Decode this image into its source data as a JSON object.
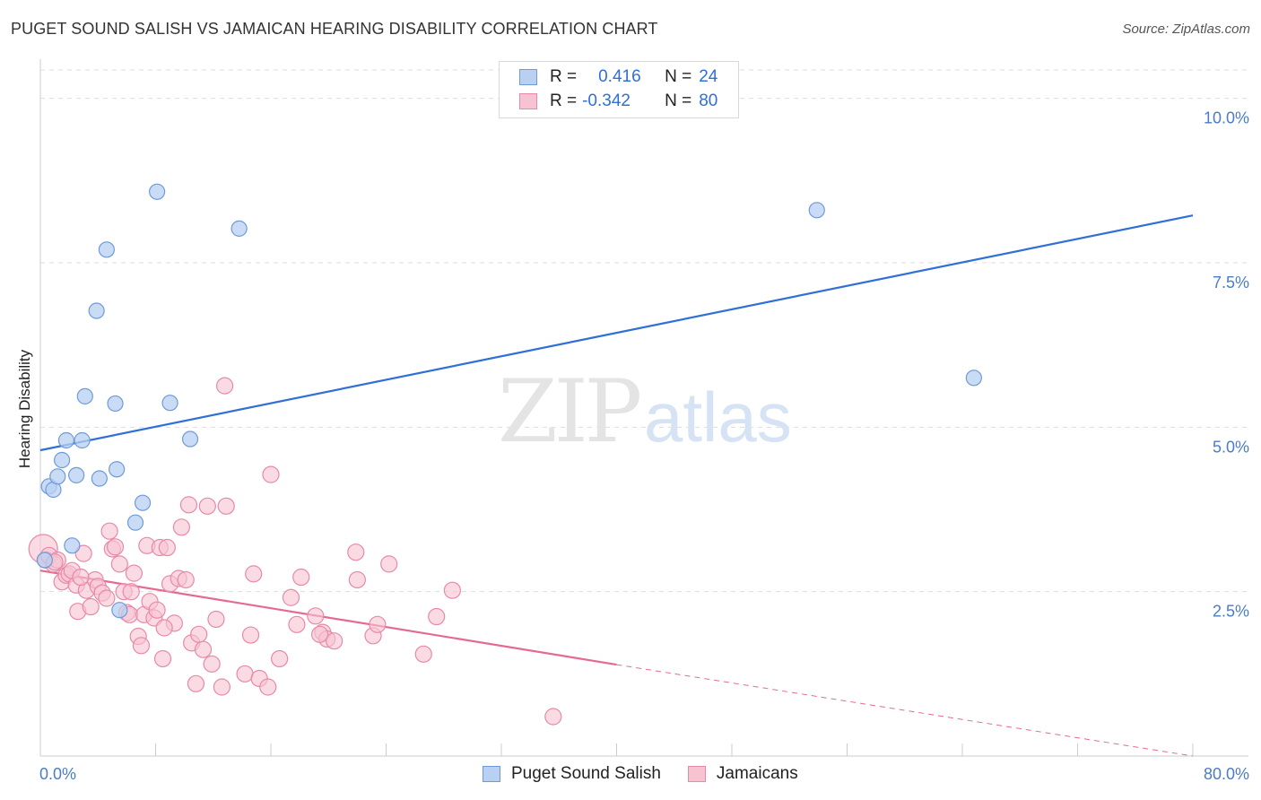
{
  "title": "PUGET SOUND SALISH VS JAMAICAN HEARING DISABILITY CORRELATION CHART",
  "source": "Source: ZipAtlas.com",
  "watermark": {
    "zip": "ZIP",
    "atlas": "atlas"
  },
  "legend": {
    "rows": [
      {
        "r_label": "R =",
        "r_value": "0.416",
        "n_label": "N =",
        "n_value": "24"
      },
      {
        "r_label": "R =",
        "r_value": "-0.342",
        "n_label": "N =",
        "n_value": "80"
      }
    ]
  },
  "colors": {
    "blue_fill": "#b8d0f2",
    "blue_stroke": "#6f9ad8",
    "blue_line": "#2f6fd6",
    "pink_fill": "#f7c3d2",
    "pink_stroke": "#e889a8",
    "pink_line": "#e56a92",
    "grid": "#dddddd",
    "tick_text": "#4a7cc9"
  },
  "chart_data": {
    "type": "scatter",
    "title": "PUGET SOUND SALISH VS JAMAICAN HEARING DISABILITY CORRELATION CHART",
    "xlabel": "",
    "ylabel": "Hearing Disability",
    "xlim": [
      0,
      80
    ],
    "ylim": [
      0,
      10.5
    ],
    "x_tick_labels": [
      "0.0%",
      "80.0%"
    ],
    "y_ticks": [
      {
        "value": 2.5,
        "label": "2.5%"
      },
      {
        "value": 5.0,
        "label": "5.0%"
      },
      {
        "value": 7.5,
        "label": "7.5%"
      },
      {
        "value": 10.0,
        "label": "10.0%"
      }
    ],
    "legend_placement": "top-center",
    "grid": true,
    "series": [
      {
        "name": "Puget Sound Salish",
        "r": 0.416,
        "n": 24,
        "points": [
          [
            0.6,
            4.1
          ],
          [
            0.9,
            4.05
          ],
          [
            1.2,
            4.25
          ],
          [
            1.5,
            4.5
          ],
          [
            1.8,
            4.8
          ],
          [
            2.2,
            3.2
          ],
          [
            2.5,
            4.27
          ],
          [
            2.9,
            4.8
          ],
          [
            3.1,
            5.47
          ],
          [
            3.9,
            6.77
          ],
          [
            4.1,
            4.22
          ],
          [
            4.6,
            7.7
          ],
          [
            5.2,
            5.36
          ],
          [
            5.3,
            4.36
          ],
          [
            5.5,
            2.22
          ],
          [
            6.6,
            3.55
          ],
          [
            7.1,
            3.85
          ],
          [
            8.1,
            8.58
          ],
          [
            9.0,
            5.37
          ],
          [
            10.4,
            4.82
          ],
          [
            13.8,
            8.02
          ],
          [
            53.9,
            8.3
          ],
          [
            64.8,
            5.75
          ],
          [
            0.3,
            2.98
          ]
        ],
        "trend": {
          "x": [
            0,
            80
          ],
          "y": [
            4.65,
            8.22
          ]
        }
      },
      {
        "name": "Jamaicans",
        "r": -0.342,
        "n": 80,
        "points": [
          [
            0.2,
            3.15
          ],
          [
            0.4,
            2.98
          ],
          [
            0.6,
            3.05
          ],
          [
            0.9,
            2.92
          ],
          [
            1.2,
            2.98
          ],
          [
            1.5,
            2.65
          ],
          [
            1.8,
            2.75
          ],
          [
            2.0,
            2.77
          ],
          [
            2.2,
            2.82
          ],
          [
            2.5,
            2.6
          ],
          [
            2.6,
            2.2
          ],
          [
            3.0,
            3.08
          ],
          [
            3.2,
            2.52
          ],
          [
            3.5,
            2.27
          ],
          [
            3.8,
            2.68
          ],
          [
            4.0,
            2.58
          ],
          [
            4.3,
            2.48
          ],
          [
            4.6,
            2.4
          ],
          [
            4.8,
            3.42
          ],
          [
            5.0,
            3.15
          ],
          [
            5.2,
            3.18
          ],
          [
            5.5,
            2.92
          ],
          [
            5.8,
            2.5
          ],
          [
            6.0,
            2.18
          ],
          [
            6.2,
            2.15
          ],
          [
            6.3,
            2.5
          ],
          [
            6.5,
            2.78
          ],
          [
            6.8,
            1.82
          ],
          [
            7.0,
            1.68
          ],
          [
            7.2,
            2.15
          ],
          [
            7.4,
            3.2
          ],
          [
            7.6,
            2.35
          ],
          [
            7.9,
            2.1
          ],
          [
            8.1,
            2.22
          ],
          [
            8.3,
            3.17
          ],
          [
            8.5,
            1.48
          ],
          [
            8.8,
            3.17
          ],
          [
            9.0,
            2.62
          ],
          [
            9.3,
            2.02
          ],
          [
            9.6,
            2.7
          ],
          [
            9.8,
            3.48
          ],
          [
            10.1,
            2.68
          ],
          [
            10.3,
            3.82
          ],
          [
            10.5,
            1.72
          ],
          [
            10.8,
            1.1
          ],
          [
            11.0,
            1.85
          ],
          [
            11.3,
            1.62
          ],
          [
            11.6,
            3.8
          ],
          [
            11.9,
            1.4
          ],
          [
            12.2,
            2.08
          ],
          [
            12.6,
            1.05
          ],
          [
            12.9,
            3.8
          ],
          [
            12.8,
            5.63
          ],
          [
            14.2,
            1.25
          ],
          [
            14.6,
            1.84
          ],
          [
            14.8,
            2.77
          ],
          [
            15.2,
            1.18
          ],
          [
            15.8,
            1.05
          ],
          [
            16.0,
            4.28
          ],
          [
            16.6,
            1.48
          ],
          [
            17.4,
            2.41
          ],
          [
            17.8,
            2.0
          ],
          [
            18.1,
            2.72
          ],
          [
            19.1,
            2.13
          ],
          [
            19.6,
            1.88
          ],
          [
            19.9,
            1.78
          ],
          [
            19.4,
            1.85
          ],
          [
            20.4,
            1.75
          ],
          [
            21.9,
            3.1
          ],
          [
            22.0,
            2.68
          ],
          [
            23.1,
            1.83
          ],
          [
            23.4,
            2.0
          ],
          [
            24.2,
            2.92
          ],
          [
            26.6,
            1.55
          ],
          [
            27.5,
            2.12
          ],
          [
            28.6,
            2.52
          ],
          [
            35.6,
            0.6
          ],
          [
            1.0,
            2.95
          ],
          [
            2.8,
            2.72
          ],
          [
            8.6,
            1.95
          ]
        ],
        "trend_solid": {
          "x": [
            0,
            40
          ],
          "y": [
            2.82,
            1.39
          ]
        },
        "trend_dashed": {
          "x": [
            40,
            80
          ],
          "y": [
            1.39,
            0.0
          ]
        }
      }
    ]
  }
}
